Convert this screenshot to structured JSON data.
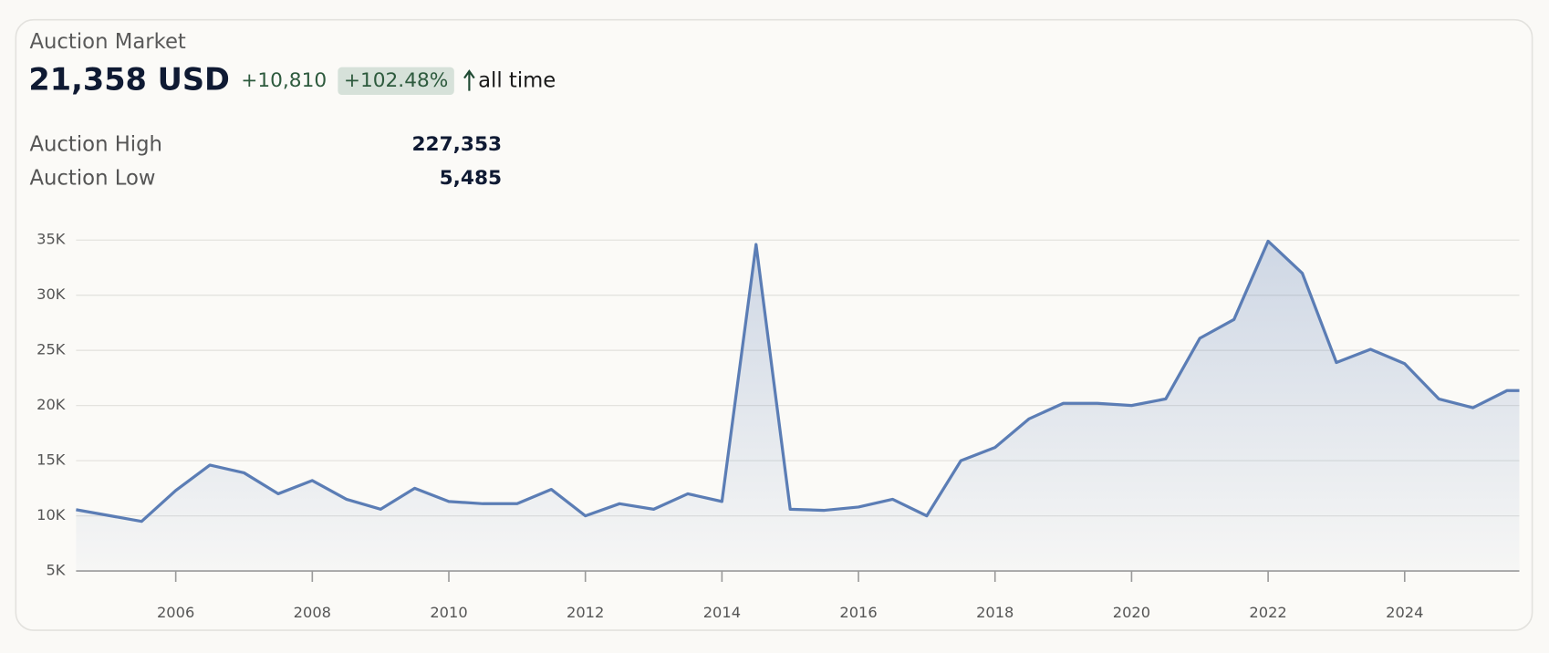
{
  "header": {
    "title": "Auction Market",
    "price": "21,358 USD",
    "change": "+10,810",
    "change_pct": "+102.48%",
    "period": "all time"
  },
  "stats": [
    {
      "label": "Auction High",
      "value": "227,353"
    },
    {
      "label": "Auction Low",
      "value": "5,485"
    }
  ],
  "chart_data": {
    "type": "area",
    "x": [
      2004.54,
      2005.5,
      2006,
      2006.5,
      2007,
      2007.5,
      2008,
      2008.5,
      2009,
      2009.5,
      2010,
      2010.5,
      2011,
      2011.5,
      2012,
      2012.5,
      2013,
      2013.5,
      2014,
      2014.5,
      2015,
      2015.5,
      2016,
      2016.5,
      2017,
      2017.5,
      2018,
      2018.5,
      2019,
      2019.5,
      2020,
      2020.5,
      2021,
      2021.5,
      2022,
      2022.5,
      2023,
      2023.5,
      2024,
      2024.5,
      2025,
      2025.5,
      2025.68
    ],
    "series": [
      {
        "color": "#5b7db5",
        "values": [
          10560,
          9500,
          12300,
          14600,
          13900,
          12000,
          13200,
          11500,
          10600,
          12500,
          11300,
          11100,
          11100,
          12400,
          10000,
          11100,
          10600,
          12000,
          11300,
          34600,
          10600,
          10500,
          10800,
          11500,
          10000,
          15000,
          16200,
          18800,
          20200,
          20200,
          20000,
          20600,
          26100,
          27800,
          34900,
          32000,
          23900,
          25100,
          23800,
          20600,
          19800,
          21358,
          21358
        ]
      }
    ],
    "xlim": [
      2004.54,
      2025.68
    ],
    "xticks": [
      2006,
      2008,
      2010,
      2012,
      2014,
      2016,
      2018,
      2020,
      2022,
      2024
    ],
    "ylim": [
      5000,
      35000
    ],
    "yticks": [
      {
        "value": 5000,
        "label": "5K"
      },
      {
        "value": 10000,
        "label": "10K"
      },
      {
        "value": 15000,
        "label": "15K"
      },
      {
        "value": 20000,
        "label": "20K"
      },
      {
        "value": 25000,
        "label": "25K"
      },
      {
        "value": 30000,
        "label": "30K"
      },
      {
        "value": 35000,
        "label": "35K"
      }
    ],
    "grid": true
  }
}
